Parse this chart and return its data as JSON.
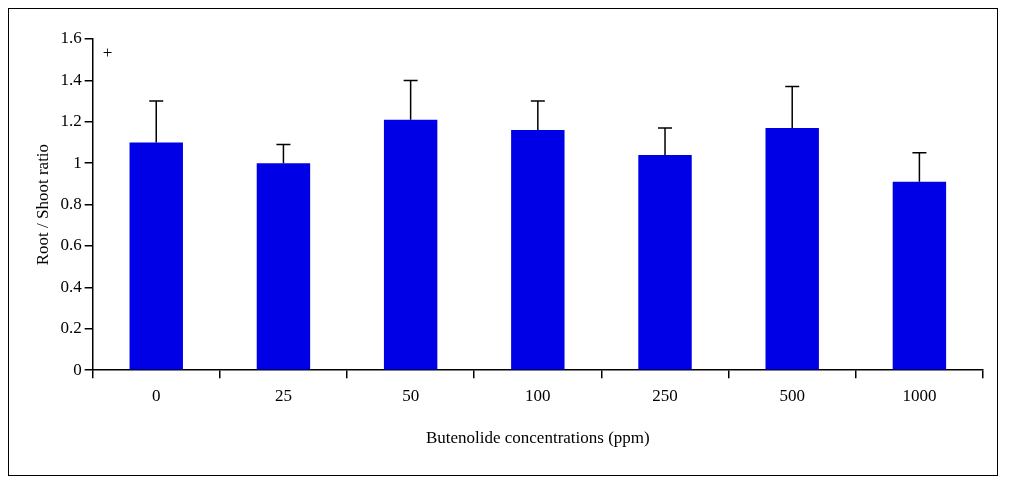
{
  "chart_data": {
    "type": "bar",
    "xlabel": "Butenolide concentrations (ppm)",
    "ylabel": "Root / Shoot ratio",
    "categories": [
      "0",
      "25",
      "50",
      "100",
      "250",
      "500",
      "1000"
    ],
    "values": [
      1.1,
      1.0,
      1.21,
      1.16,
      1.04,
      1.17,
      0.91
    ],
    "errors": [
      [
        1.1,
        1.3
      ],
      [
        1.0,
        1.09
      ],
      [
        1.21,
        1.4
      ],
      [
        1.16,
        1.3
      ],
      [
        1.04,
        1.17
      ],
      [
        1.17,
        1.37
      ],
      [
        0.91,
        1.05
      ]
    ],
    "color": "#0000e6",
    "ylim": [
      0,
      1.6
    ],
    "yticks": [
      0,
      0.2,
      0.4,
      0.6,
      0.8,
      1,
      1.2,
      1.4,
      1.6
    ],
    "annotations": [
      "+"
    ],
    "grid": false,
    "legend": false
  }
}
